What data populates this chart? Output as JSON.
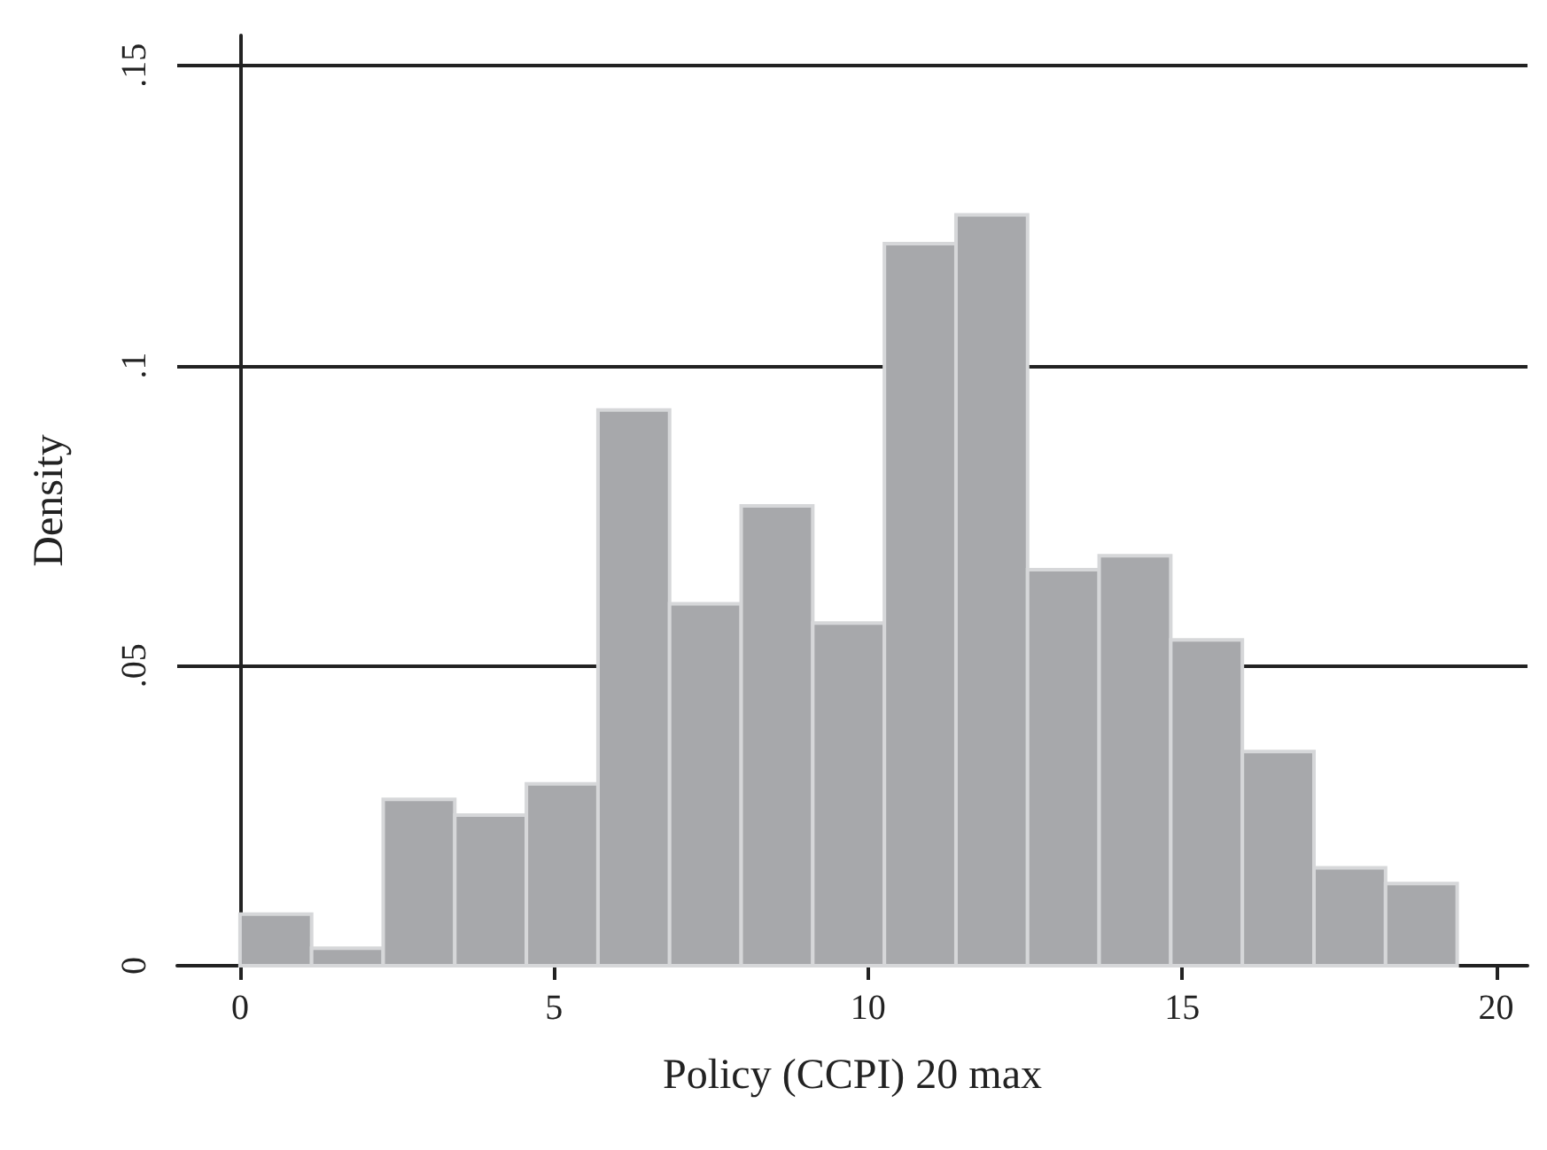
{
  "chart_data": {
    "type": "histogram",
    "xlabel": "Policy (CCPI) 20 max",
    "ylabel": "Density",
    "bins": [
      0,
      1.14,
      2.28,
      3.42,
      4.56,
      5.7,
      6.84,
      7.98,
      9.12,
      10.26,
      11.4,
      12.54,
      13.68,
      14.82,
      15.96,
      17.1,
      18.24,
      19.38
    ],
    "values": [
      0.0086,
      0.0029,
      0.0277,
      0.0251,
      0.0303,
      0.0926,
      0.0603,
      0.0766,
      0.0571,
      0.1203,
      0.1251,
      0.066,
      0.0683,
      0.0543,
      0.0357,
      0.0163,
      0.0137
    ],
    "color": "#a7a8ab",
    "xlim": [
      -1,
      20.5
    ],
    "xticks": [
      0,
      5,
      10,
      15,
      20
    ],
    "ylim": [
      0,
      0.155
    ],
    "yticks": [
      {
        "value": 0,
        "label": "0"
      },
      {
        "value": 0.05,
        "label": ".05"
      },
      {
        "value": 0.1,
        "label": ".1"
      },
      {
        "value": 0.15,
        "label": ".15"
      }
    ],
    "grid": "y"
  }
}
